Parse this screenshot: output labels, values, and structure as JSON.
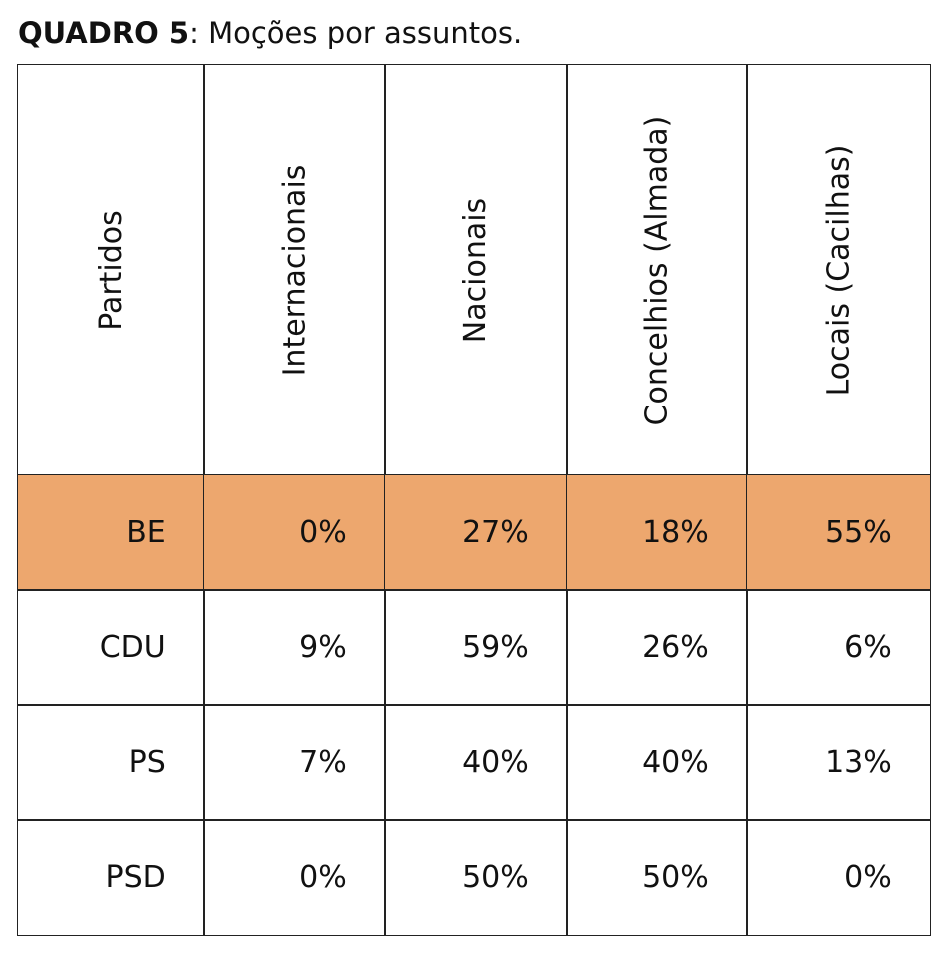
{
  "title": {
    "label": "QUADRO 5",
    "text": ": Moções por assuntos."
  },
  "table": {
    "headers": [
      "Partidos",
      "Internacionais",
      "Nacionais",
      "Concelhios (Almada)",
      "Locais (Cacilhas)"
    ],
    "rows": [
      [
        "BE",
        "0%",
        "27%",
        "18%",
        "55%"
      ],
      [
        "CDU",
        "9%",
        "59%",
        "26%",
        "6%"
      ],
      [
        "PS",
        "7%",
        "40%",
        "40%",
        "13%"
      ],
      [
        "PSD",
        "0%",
        "50%",
        "50%",
        "0%"
      ]
    ]
  }
}
